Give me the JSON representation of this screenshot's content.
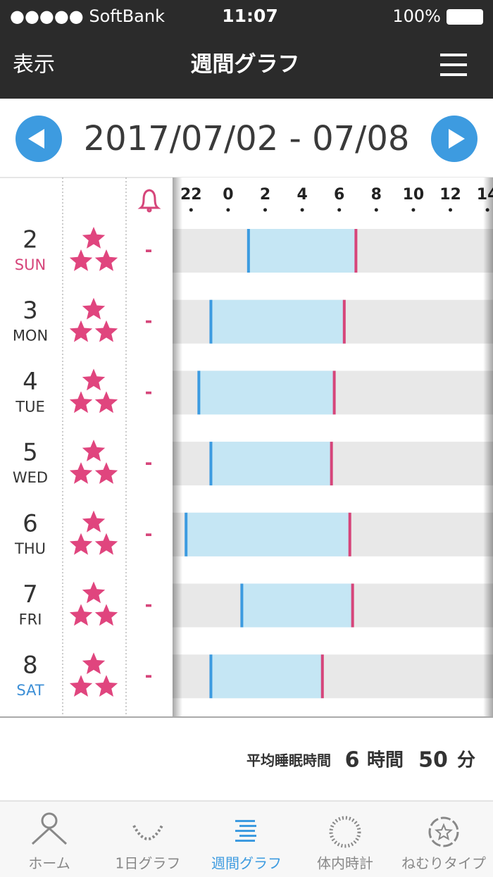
{
  "status_bar": {
    "carrier": "●●●●● SoftBank",
    "time": "11:07",
    "battery": "100%"
  },
  "nav": {
    "left": "表示",
    "title": "週間グラフ"
  },
  "date_range": "2017/07/02 - 07/08",
  "chart_data": {
    "type": "range-bar",
    "days": [
      "2",
      "3",
      "4",
      "5",
      "6",
      "7",
      "8"
    ],
    "weekdays": [
      "SUN",
      "MON",
      "TUE",
      "WED",
      "THU",
      "FRI",
      "SAT"
    ],
    "weekday_colors": [
      "#d6457a",
      "#333333",
      "#333333",
      "#333333",
      "#333333",
      "#333333",
      "#3d8fd6"
    ],
    "alarms": [
      "-",
      "-",
      "-",
      "-",
      "-",
      "-",
      "-"
    ],
    "start": [
      25.1,
      23.07,
      22.42,
      23.07,
      21.73,
      24.74,
      23.07
    ],
    "end": [
      30.9,
      30.27,
      29.73,
      29.58,
      30.57,
      30.72,
      29.09
    ],
    "bar_color": "#c5e6f4",
    "start_color": "#3c9be0",
    "end_color": "#d6457a",
    "xlim": [
      21,
      38.3
    ],
    "xticks": [
      22,
      {
        "value": 24,
        "label": "0"
      },
      {
        "value": 26,
        "label": "2"
      },
      {
        "value": 28,
        "label": "4"
      },
      {
        "value": 30,
        "label": "6"
      },
      {
        "value": 32,
        "label": "8"
      },
      {
        "value": 34,
        "label": "10"
      },
      {
        "value": 36,
        "label": "12"
      },
      {
        "value": 38,
        "label": "14"
      }
    ]
  },
  "summary": {
    "label": "平均睡眠時間",
    "hours": 6,
    "hours_unit": "時間",
    "minutes": 50,
    "minutes_unit": "分"
  },
  "tabs": [
    "ホーム",
    "1日グラフ",
    "週間グラフ",
    "体内時計",
    "ねむりタイプ"
  ]
}
